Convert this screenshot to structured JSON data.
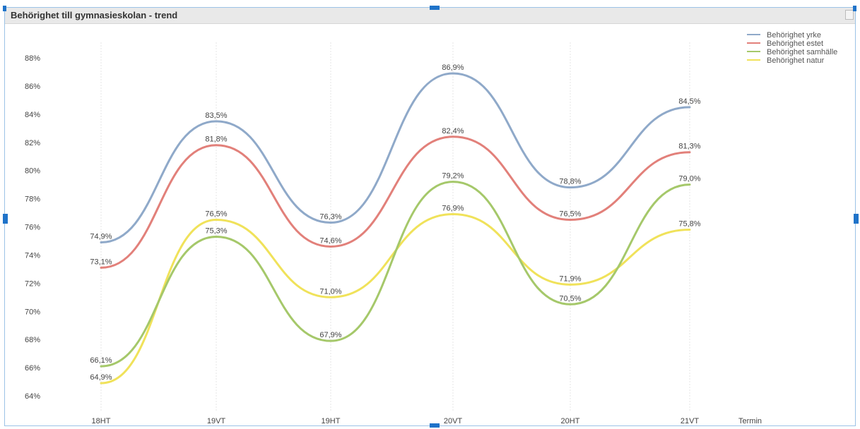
{
  "window": {
    "title": "Behörighet till gymnasieskolan - trend"
  },
  "chart_data": {
    "type": "line",
    "title": "Behörighet till gymnasieskolan - trend",
    "xlabel": "Termin",
    "ylabel": "",
    "categories": [
      "18HT",
      "19VT",
      "19HT",
      "20VT",
      "20HT",
      "21VT"
    ],
    "ylim": [
      63,
      90
    ],
    "yticks": [
      64,
      66,
      68,
      70,
      72,
      74,
      76,
      78,
      80,
      82,
      84,
      86,
      88
    ],
    "ytick_labels": [
      "64%",
      "66%",
      "68%",
      "70%",
      "72%",
      "74%",
      "76%",
      "78%",
      "80%",
      "82%",
      "84%",
      "86%",
      "88%"
    ],
    "grid": "vertical",
    "legend_position": "top-right",
    "series": [
      {
        "name": "Behörighet yrke",
        "color": "#8fa9c9",
        "values": [
          74.9,
          83.5,
          76.3,
          86.9,
          78.8,
          84.5
        ],
        "labels": [
          "74,9%",
          "83,5%",
          "76,3%",
          "86,9%",
          "78,8%",
          "84,5%"
        ]
      },
      {
        "name": "Behörighet estet",
        "color": "#e2807a",
        "values": [
          73.1,
          81.8,
          74.6,
          82.4,
          76.5,
          81.3
        ],
        "labels": [
          "73,1%",
          "81,8%",
          "74,6%",
          "82,4%",
          "76,5%",
          "81,3%"
        ]
      },
      {
        "name": "Behörighet samhälle",
        "color": "#a5c86a",
        "values": [
          66.1,
          75.3,
          67.9,
          79.2,
          70.5,
          79.0
        ],
        "labels": [
          "66,1%",
          "75,3%",
          "67,9%",
          "79,2%",
          "70,5%",
          "79,0%"
        ]
      },
      {
        "name": "Behörighet natur",
        "color": "#f0e25a",
        "values": [
          64.9,
          76.5,
          71.0,
          76.9,
          71.9,
          75.8
        ],
        "labels": [
          "64,9%",
          "76,5%",
          "71,0%",
          "76,9%",
          "71,9%",
          "75,8%"
        ]
      }
    ]
  }
}
